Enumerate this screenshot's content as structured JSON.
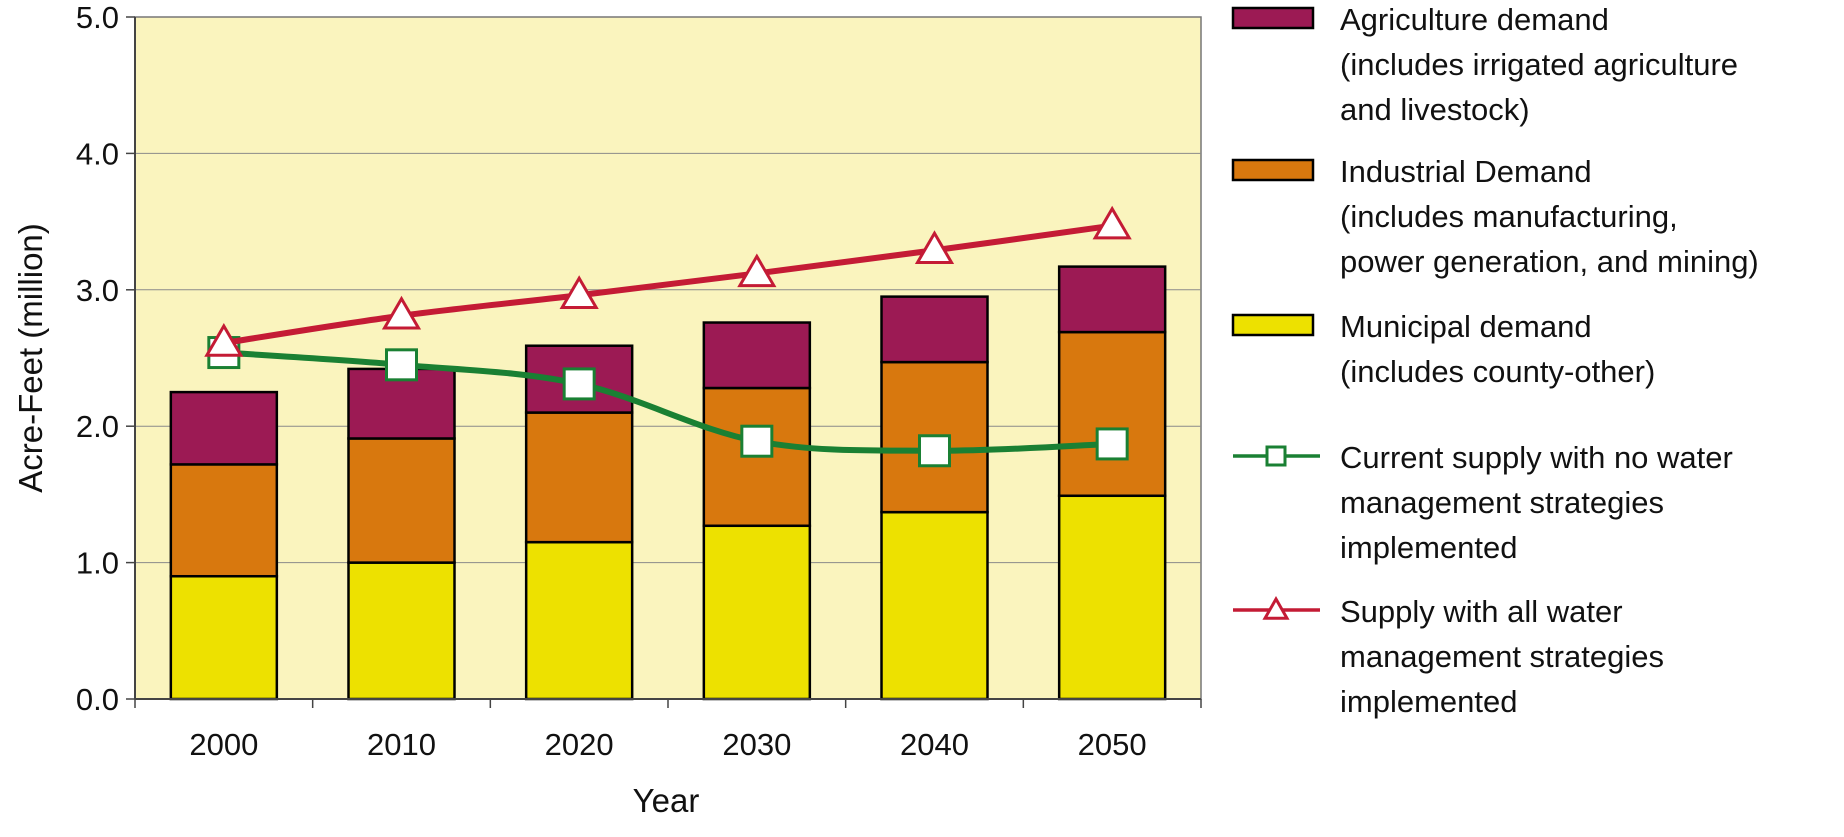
{
  "chart_data": {
    "type": "bar",
    "stacked": true,
    "categories": [
      "2000",
      "2010",
      "2020",
      "2030",
      "2040",
      "2050"
    ],
    "series": [
      {
        "name": "Municipal demand\n(includes county-other)",
        "type": "bar",
        "color": "#EDE100",
        "values": [
          0.9,
          1.0,
          1.15,
          1.27,
          1.37,
          1.49
        ]
      },
      {
        "name": "Industrial Demand\n(includes manufacturing,\npower generation, and mining)",
        "type": "bar",
        "color": "#D8780E",
        "values": [
          0.82,
          0.91,
          0.95,
          1.01,
          1.1,
          1.2
        ]
      },
      {
        "name": "Agriculture demand\n(includes irrigated agriculture\nand livestock)",
        "type": "bar",
        "color": "#9C1A54",
        "values": [
          0.53,
          0.51,
          0.49,
          0.48,
          0.48,
          0.48
        ]
      },
      {
        "name": "Current supply with no water\nmanagement strategies\nimplemented",
        "type": "line",
        "marker": "square",
        "color": "#1A8033",
        "values": [
          2.54,
          2.45,
          2.31,
          1.89,
          1.82,
          1.87
        ]
      },
      {
        "name": "Supply with all water\nmanagement strategies\nimplemented",
        "type": "line",
        "marker": "triangle",
        "color": "#C41B35",
        "values": [
          2.61,
          2.81,
          2.96,
          3.12,
          3.29,
          3.47
        ]
      }
    ],
    "legend_order": [
      2,
      1,
      0,
      3,
      4
    ],
    "xlabel": "Year",
    "ylabel": "Acre-Feet (million)",
    "ylim": [
      0,
      5
    ],
    "yticks": [
      "0.0",
      "1.0",
      "2.0",
      "3.0",
      "4.0",
      "5.0"
    ],
    "grid": true,
    "legend_position": "right",
    "plot_background": "#FAF4BE"
  }
}
